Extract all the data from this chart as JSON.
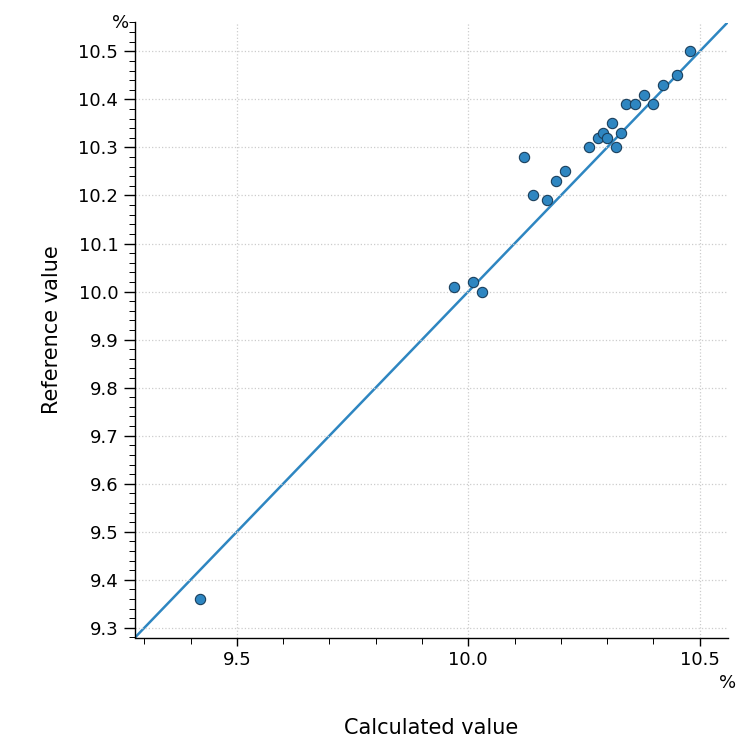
{
  "scatter_x": [
    9.42,
    9.97,
    10.01,
    10.03,
    10.12,
    10.14,
    10.17,
    10.19,
    10.21,
    10.26,
    10.28,
    10.29,
    10.3,
    10.31,
    10.32,
    10.33,
    10.34,
    10.36,
    10.38,
    10.4,
    10.42,
    10.45,
    10.48
  ],
  "scatter_y": [
    9.36,
    10.01,
    10.02,
    10.0,
    10.28,
    10.2,
    10.19,
    10.23,
    10.25,
    10.3,
    10.32,
    10.33,
    10.32,
    10.35,
    10.3,
    10.33,
    10.39,
    10.39,
    10.41,
    10.39,
    10.43,
    10.45,
    10.5
  ],
  "line_x": [
    9.28,
    10.56
  ],
  "line_y": [
    9.28,
    10.56
  ],
  "dot_color": "#2e86c1",
  "dot_edge_color": "#1a3f5c",
  "line_color": "#2e86c1",
  "xlim": [
    9.28,
    10.56
  ],
  "ylim": [
    9.28,
    10.56
  ],
  "xticks": [
    9.5,
    10.0,
    10.5
  ],
  "yticks": [
    9.3,
    9.4,
    9.5,
    9.6,
    9.7,
    9.8,
    9.9,
    10.0,
    10.1,
    10.2,
    10.3,
    10.4,
    10.5
  ],
  "xlabel": "Calculated value",
  "ylabel": "Reference value",
  "xlabel_suffix": "%",
  "ylabel_prefix": "%",
  "background_color": "#ffffff",
  "grid_color": "#cccccc",
  "dot_size": 55,
  "line_width": 1.8,
  "xlabel_fontsize": 15,
  "ylabel_fontsize": 15,
  "tick_fontsize": 13
}
